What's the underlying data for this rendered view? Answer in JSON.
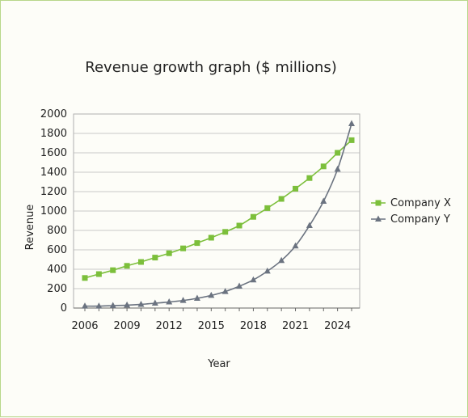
{
  "chart_data": {
    "type": "line",
    "title": "Revenue growth graph ($ millions)",
    "xlabel": "Year",
    "ylabel": "Revenue",
    "xlim": [
      2006,
      2025
    ],
    "ylim": [
      0,
      2000
    ],
    "x_ticks": [
      "2006",
      "2009",
      "2012",
      "2015",
      "2018",
      "2021",
      "2024"
    ],
    "y_ticks": [
      "0",
      "200",
      "400",
      "600",
      "800",
      "1000",
      "1200",
      "1400",
      "1600",
      "1800",
      "2000"
    ],
    "grid": true,
    "legend_position": "right",
    "x": [
      2006,
      2007,
      2008,
      2009,
      2010,
      2011,
      2012,
      2013,
      2014,
      2015,
      2016,
      2017,
      2018,
      2019,
      2020,
      2021,
      2022,
      2023,
      2024,
      2025
    ],
    "series": [
      {
        "name": "Company X",
        "color": "#7cbf3b",
        "marker": "square",
        "values": [
          310,
          350,
          390,
          435,
          475,
          520,
          565,
          615,
          670,
          725,
          785,
          850,
          940,
          1030,
          1125,
          1230,
          1340,
          1460,
          1600,
          1730
        ]
      },
      {
        "name": "Company Y",
        "color": "#6b7380",
        "marker": "triangle",
        "values": [
          20,
          20,
          25,
          30,
          38,
          50,
          62,
          78,
          100,
          130,
          170,
          225,
          290,
          380,
          490,
          640,
          850,
          1100,
          1430,
          1900
        ]
      }
    ]
  }
}
